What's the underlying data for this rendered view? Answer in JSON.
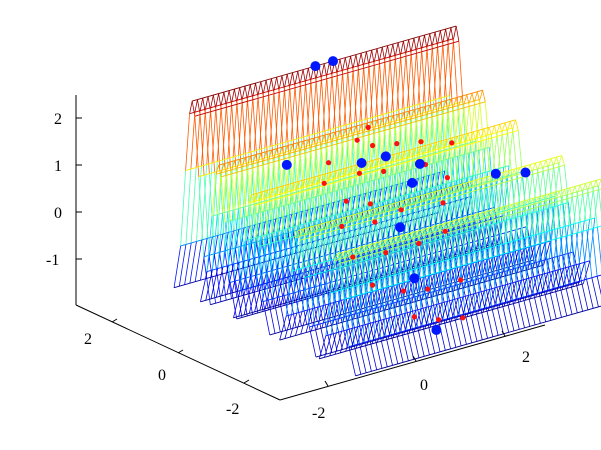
{
  "chart_data": {
    "type": "surface",
    "title": "",
    "xlabel": "",
    "ylabel": "",
    "zlabel": "",
    "x_range": [
      -3,
      3
    ],
    "y_range": [
      -3,
      3
    ],
    "z_range": [
      -2,
      2.3
    ],
    "x_ticks": [
      "-2",
      "0",
      "2"
    ],
    "y_ticks": [
      "-2",
      "0",
      "2"
    ],
    "z_ticks": [
      "-1",
      "0",
      "1",
      "2"
    ],
    "grid": false,
    "colormap": "jet",
    "ridges": [
      {
        "y": 2.6,
        "z_peak": 2.3
      },
      {
        "y": 1.8,
        "z_peak": 1.2
      },
      {
        "y": 0.8,
        "z_peak": 0.9
      },
      {
        "y": -0.6,
        "z_peak": 0.6
      },
      {
        "y": -1.8,
        "z_peak": 0.5
      }
    ],
    "markers": {
      "blue": {
        "color": "#0018ff",
        "points": [
          {
            "x": -0.2,
            "y": 2.6,
            "z": 2.3
          },
          {
            "x": 0.2,
            "y": 2.6,
            "z": 2.3
          },
          {
            "x": -1.6,
            "y": 1.6,
            "z": 0.9
          },
          {
            "x": -0.2,
            "y": 1.2,
            "z": 0.7
          },
          {
            "x": 0.2,
            "y": 1.0,
            "z": 0.8
          },
          {
            "x": 0.6,
            "y": 0.5,
            "z": 0.7
          },
          {
            "x": 0.2,
            "y": 0.2,
            "z": 0.5
          },
          {
            "x": 1.8,
            "y": -0.2,
            "z": 0.4
          },
          {
            "x": 2.4,
            "y": -0.3,
            "z": 0.3
          },
          {
            "x": -0.6,
            "y": -0.5,
            "z": 0.0
          },
          {
            "x": -0.8,
            "y": -1.2,
            "z": -0.8
          },
          {
            "x": -1.2,
            "y": -2.4,
            "z": -1.4
          }
        ]
      },
      "red": {
        "color": "#ff1010",
        "points": [
          {
            "x": 0.2,
            "y": 1.4,
            "z": 0.9
          },
          {
            "x": 0.6,
            "y": 1.2,
            "z": 0.9
          },
          {
            "x": 1.0,
            "y": 1.0,
            "z": 0.9
          },
          {
            "x": 1.4,
            "y": 0.6,
            "z": 0.9
          },
          {
            "x": -0.4,
            "y": 1.0,
            "z": 0.6
          },
          {
            "x": 0.0,
            "y": 0.8,
            "z": 0.6
          },
          {
            "x": 0.8,
            "y": 0.6,
            "z": 0.6
          },
          {
            "x": -1.0,
            "y": 0.6,
            "z": 0.3
          },
          {
            "x": -0.6,
            "y": 0.4,
            "z": 0.2
          },
          {
            "x": 0.4,
            "y": 0.4,
            "z": 0.4
          },
          {
            "x": 1.0,
            "y": 0.2,
            "z": 0.4
          },
          {
            "x": -1.4,
            "y": 0.2,
            "z": 0.0
          },
          {
            "x": -0.8,
            "y": 0.0,
            "z": 0.0
          },
          {
            "x": -0.2,
            "y": 0.0,
            "z": 0.1
          },
          {
            "x": 0.6,
            "y": -0.2,
            "z": 0.1
          },
          {
            "x": -1.6,
            "y": -0.4,
            "z": -0.4
          },
          {
            "x": -1.0,
            "y": -0.6,
            "z": -0.4
          },
          {
            "x": -0.4,
            "y": -0.8,
            "z": -0.3
          },
          {
            "x": 0.2,
            "y": -0.8,
            "z": -0.2
          },
          {
            "x": -1.6,
            "y": -1.0,
            "z": -0.8
          },
          {
            "x": -1.2,
            "y": -1.4,
            "z": -0.9
          },
          {
            "x": -0.8,
            "y": -1.6,
            "z": -0.9
          },
          {
            "x": -0.2,
            "y": -1.8,
            "z": -0.8
          },
          {
            "x": -1.4,
            "y": -2.0,
            "z": -1.2
          },
          {
            "x": -1.0,
            "y": -2.2,
            "z": -1.3
          },
          {
            "x": -0.6,
            "y": -2.4,
            "z": -1.3
          },
          {
            "x": 0.0,
            "y": 1.6,
            "z": 1.0
          },
          {
            "x": 0.4,
            "y": 1.8,
            "z": 1.1
          },
          {
            "x": -0.8,
            "y": 1.4,
            "z": 0.8
          },
          {
            "x": -1.2,
            "y": 1.0,
            "z": 0.6
          }
        ]
      }
    }
  }
}
